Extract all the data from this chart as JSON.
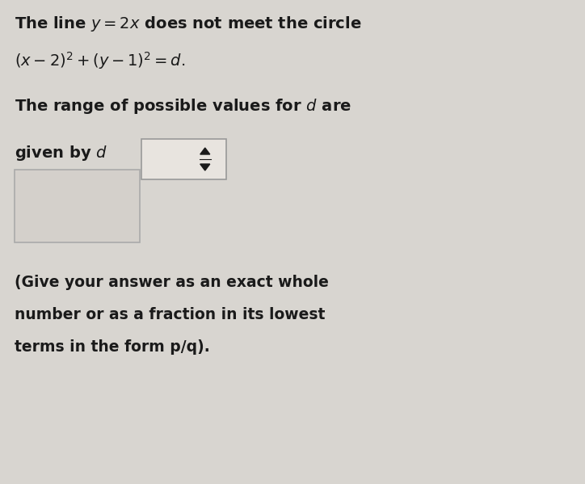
{
  "background_color": "#d8d5d0",
  "text_color": "#1a1a1a",
  "line1": "The line $y = 2x$ does not meet the circle",
  "line2": "$(x - 2)^2 + (y - 1)^2 = d.$",
  "line3": "The range of possible values for $d$ are",
  "line4_prefix": "given by $d$",
  "line5": "(Give your answer as an exact whole",
  "line6": "number or as a fraction in its lowest",
  "line7": "terms in the form p/q).",
  "font_size_main": 14,
  "font_size_note": 13.5
}
